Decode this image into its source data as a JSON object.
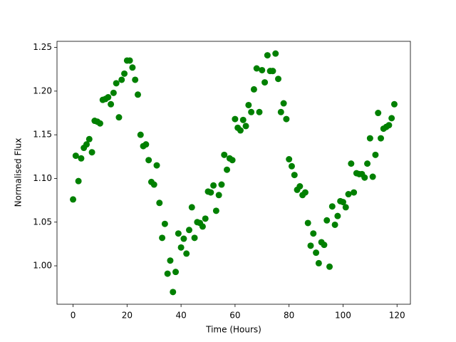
{
  "chart_data": {
    "type": "scatter",
    "x_label": "Time (Hours)",
    "y_label": "Normalised Flux",
    "x": [
      0,
      1,
      2,
      3,
      4,
      5,
      6,
      7,
      8,
      9,
      10,
      11,
      12,
      13,
      14,
      15,
      16,
      17,
      18,
      19,
      20,
      21,
      22,
      23,
      24,
      25,
      26,
      27,
      28,
      29,
      30,
      31,
      32,
      33,
      34,
      35,
      36,
      37,
      38,
      39,
      40,
      41,
      42,
      43,
      44,
      45,
      46,
      47,
      48,
      49,
      50,
      51,
      52,
      53,
      54,
      55,
      56,
      57,
      58,
      59,
      60,
      61,
      62,
      63,
      64,
      65,
      66,
      67,
      68,
      69,
      70,
      71,
      72,
      73,
      74,
      75,
      76,
      77,
      78,
      79,
      80,
      81,
      82,
      83,
      84,
      85,
      86,
      87,
      88,
      89,
      90,
      91,
      92,
      93,
      94,
      95,
      96,
      97,
      98,
      99,
      100,
      101,
      102,
      103,
      104,
      105,
      106,
      107,
      108,
      109,
      110,
      111,
      112,
      113,
      114,
      115,
      116,
      117,
      118,
      119
    ],
    "series": [
      {
        "color": "#008000",
        "values": [
          1.076,
          1.126,
          1.097,
          1.123,
          1.135,
          1.139,
          1.145,
          1.13,
          1.166,
          1.165,
          1.163,
          1.19,
          1.191,
          1.193,
          1.185,
          1.198,
          1.209,
          1.17,
          1.213,
          1.22,
          1.235,
          1.235,
          1.227,
          1.213,
          1.196,
          1.15,
          1.137,
          1.139,
          1.121,
          1.096,
          1.093,
          1.115,
          1.072,
          1.032,
          1.048,
          0.991,
          1.006,
          0.97,
          0.993,
          1.037,
          1.021,
          1.031,
          1.014,
          1.041,
          1.067,
          1.032,
          1.05,
          1.049,
          1.045,
          1.054,
          1.085,
          1.084,
          1.092,
          1.063,
          1.081,
          1.093,
          1.127,
          1.11,
          1.123,
          1.121,
          1.168,
          1.158,
          1.155,
          1.167,
          1.16,
          1.184,
          1.176,
          1.202,
          1.226,
          1.176,
          1.224,
          1.21,
          1.241,
          1.223,
          1.223,
          1.243,
          1.214,
          1.176,
          1.186,
          1.168,
          1.122,
          1.114,
          1.104,
          1.087,
          1.091,
          1.081,
          1.084,
          1.049,
          1.023,
          1.037,
          1.015,
          1.003,
          1.027,
          1.024,
          1.052,
          0.999,
          1.068,
          1.047,
          1.057,
          1.074,
          1.073,
          1.067,
          1.082,
          1.117,
          1.084,
          1.106,
          1.105,
          1.105,
          1.101,
          1.117,
          1.146,
          1.102,
          1.127,
          1.175,
          1.146,
          1.157,
          1.159,
          1.161,
          1.169,
          1.185
        ]
      }
    ],
    "xlim": [
      -5.95,
      124.95
    ],
    "ylim": [
      0.956,
      1.257
    ],
    "xticks": [
      0,
      20,
      40,
      60,
      80,
      100,
      120
    ],
    "yticks": [
      {
        "value": 1.0,
        "label": "1.00"
      },
      1.05,
      {
        "value": 1.1,
        "label": "1.10"
      },
      1.15,
      {
        "value": 1.2,
        "label": "1.20"
      },
      1.25
    ],
    "grid": false
  }
}
